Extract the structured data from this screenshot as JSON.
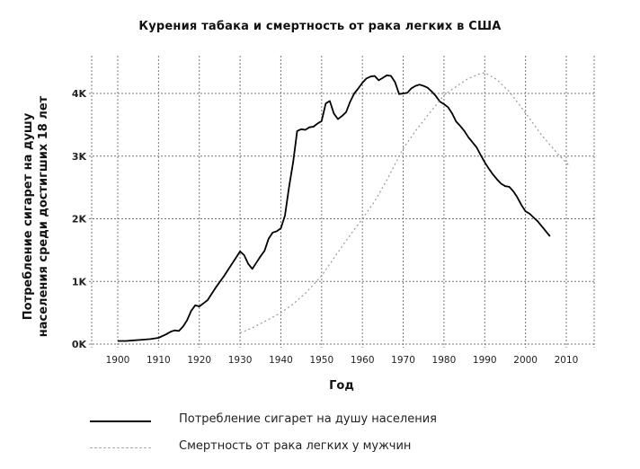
{
  "chart_data": {
    "type": "line",
    "title": "Курения табака и смертность от рака легких в США",
    "xlabel": "Год",
    "ylabel": "Потребление сигарет на душу\nнаселения среди достигших 18 лет",
    "xlim": [
      1893,
      2017
    ],
    "ylim": [
      0,
      4400
    ],
    "x_ticks": [
      1900,
      1910,
      1920,
      1930,
      1940,
      1950,
      1960,
      1970,
      1980,
      1990,
      2000,
      2010
    ],
    "y_ticks": [
      0,
      1000,
      2000,
      3000,
      4000
    ],
    "y_tick_labels": [
      "0K",
      "1K",
      "2K",
      "3K",
      "4K"
    ],
    "grid": true,
    "legend_position": "bottom",
    "series": [
      {
        "name": "Потребление сигарет на душу населения",
        "style": "solid",
        "color": "#000000",
        "x": [
          1900,
          1902,
          1904,
          1906,
          1908,
          1910,
          1912,
          1913,
          1914,
          1915,
          1916,
          1917,
          1918,
          1919,
          1920,
          1922,
          1924,
          1926,
          1928,
          1929,
          1930,
          1931,
          1932,
          1933,
          1934,
          1935,
          1936,
          1937,
          1938,
          1939,
          1940,
          1941,
          1942,
          1943,
          1944,
          1945,
          1946,
          1947,
          1948,
          1949,
          1950,
          1951,
          1952,
          1953,
          1954,
          1955,
          1956,
          1957,
          1958,
          1959,
          1960,
          1961,
          1962,
          1963,
          1964,
          1965,
          1966,
          1967,
          1968,
          1969,
          1970,
          1971,
          1972,
          1973,
          1974,
          1975,
          1976,
          1977,
          1978,
          1979,
          1980,
          1981,
          1982,
          1983,
          1984,
          1985,
          1986,
          1987,
          1988,
          1989,
          1990,
          1991,
          1992,
          1993,
          1994,
          1995,
          1996,
          1997,
          1998,
          1999,
          2000,
          2001,
          2002,
          2003,
          2004,
          2005,
          2006
        ],
        "values": [
          50,
          50,
          60,
          70,
          80,
          100,
          160,
          200,
          220,
          210,
          280,
          380,
          530,
          620,
          600,
          700,
          900,
          1080,
          1280,
          1380,
          1480,
          1420,
          1280,
          1200,
          1300,
          1400,
          1490,
          1680,
          1780,
          1800,
          1850,
          2050,
          2500,
          2900,
          3400,
          3430,
          3420,
          3460,
          3470,
          3520,
          3560,
          3840,
          3880,
          3680,
          3590,
          3640,
          3700,
          3870,
          4000,
          4080,
          4170,
          4240,
          4270,
          4280,
          4210,
          4250,
          4290,
          4280,
          4180,
          3990,
          4000,
          4010,
          4080,
          4120,
          4140,
          4120,
          4090,
          4030,
          3960,
          3870,
          3830,
          3780,
          3680,
          3550,
          3480,
          3400,
          3300,
          3220,
          3140,
          3020,
          2900,
          2800,
          2710,
          2630,
          2560,
          2520,
          2510,
          2440,
          2340,
          2220,
          2120,
          2080,
          2020,
          1960,
          1880,
          1800,
          1720
        ]
      },
      {
        "name": "Смертность от рака легких у мужчин",
        "style": "dotted",
        "color": "#999999",
        "x": [
          1930,
          1933,
          1936,
          1940,
          1943,
          1946,
          1950,
          1953,
          1956,
          1960,
          1963,
          1966,
          1970,
          1973,
          1976,
          1980,
          1983,
          1986,
          1989,
          1990,
          1993,
          1996,
          2000,
          2004,
          2008,
          2011
        ],
        "values": [
          180,
          260,
          360,
          500,
          640,
          810,
          1090,
          1370,
          1650,
          2000,
          2280,
          2620,
          3120,
          3400,
          3650,
          3970,
          4110,
          4240,
          4320,
          4330,
          4220,
          4030,
          3690,
          3330,
          3030,
          2830
        ]
      }
    ]
  },
  "legend": {
    "items": [
      {
        "label": "Потребление сигарет на душу населения",
        "style": "solid"
      },
      {
        "label": "Смертность от рака легких у мужчин",
        "style": "dotted"
      }
    ]
  }
}
